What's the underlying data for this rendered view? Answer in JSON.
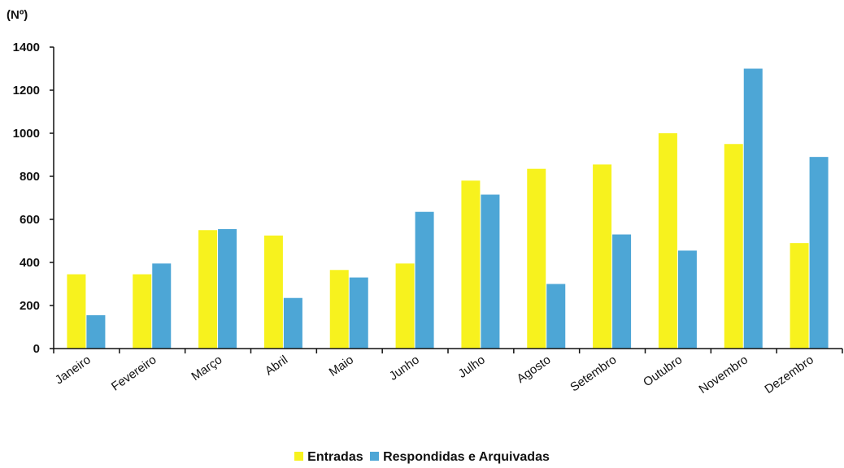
{
  "chart_data": {
    "type": "bar",
    "title": "",
    "xlabel": "",
    "ylabel": "(Nº)",
    "ylim": [
      0,
      1400
    ],
    "yticks": [
      0,
      200,
      400,
      600,
      800,
      1000,
      1200,
      1400
    ],
    "grid": false,
    "legend_position": "bottom",
    "categories": [
      "Janeiro",
      "Fevereiro",
      "Março",
      "Abril",
      "Maio",
      "Junho",
      "Julho",
      "Agosto",
      "Setembro",
      "Outubro",
      "Novembro",
      "Dezembro"
    ],
    "series": [
      {
        "name": "Entradas",
        "color": "#f7f21e",
        "values": [
          345,
          345,
          550,
          525,
          365,
          395,
          780,
          835,
          855,
          1000,
          950,
          490
        ]
      },
      {
        "name": "Respondidas e Arquivadas",
        "color": "#4da6d6",
        "values": [
          155,
          395,
          555,
          235,
          330,
          635,
          715,
          300,
          530,
          455,
          1300,
          890
        ]
      }
    ]
  }
}
